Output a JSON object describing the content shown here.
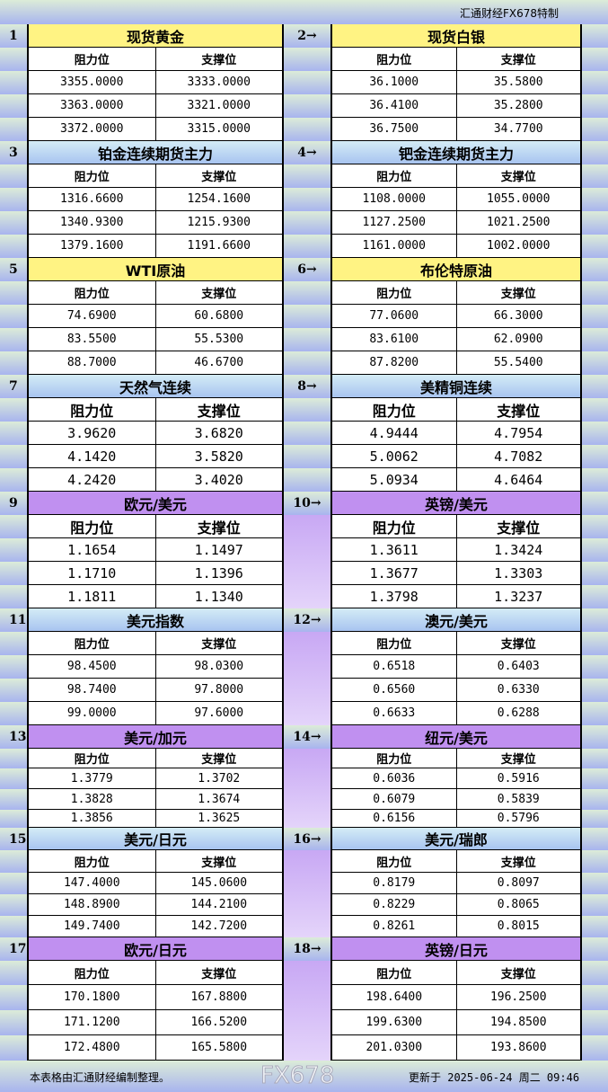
{
  "header": {
    "brand": "汇通财经FX678特制"
  },
  "columns": {
    "resistance": "阻力位",
    "support": "支撑位"
  },
  "sections": [
    {
      "no": "1",
      "name": "现货黄金",
      "color": "yellow",
      "res": [
        "3355.0000",
        "3363.0000",
        "3372.0000"
      ],
      "sup": [
        "3333.0000",
        "3321.0000",
        "3315.0000"
      ]
    },
    {
      "no": "2→",
      "name": "现货白银",
      "color": "yellow",
      "res": [
        "36.1000",
        "36.4100",
        "36.7500"
      ],
      "sup": [
        "35.5800",
        "35.2800",
        "34.7700"
      ]
    },
    {
      "no": "3",
      "name": "铂金连续期货主力",
      "color": "blue",
      "res": [
        "1316.6600",
        "1340.9300",
        "1379.1600"
      ],
      "sup": [
        "1254.1600",
        "1215.9300",
        "1191.6600"
      ]
    },
    {
      "no": "4→",
      "name": "钯金连续期货主力",
      "color": "blue",
      "res": [
        "1108.0000",
        "1127.2500",
        "1161.0000"
      ],
      "sup": [
        "1055.0000",
        "1021.2500",
        "1002.0000"
      ]
    },
    {
      "no": "5",
      "name": "WTI原油",
      "color": "yellow",
      "res": [
        "74.6900",
        "83.5500",
        "88.7000"
      ],
      "sup": [
        "60.6800",
        "55.5300",
        "46.6700"
      ]
    },
    {
      "no": "6→",
      "name": "布伦特原油",
      "color": "yellow",
      "res": [
        "77.0600",
        "83.6100",
        "87.8200"
      ],
      "sup": [
        "66.3000",
        "62.0900",
        "55.5400"
      ]
    },
    {
      "no": "7",
      "name": "天然气连续",
      "color": "blue",
      "res": [
        "3.9620",
        "4.1420",
        "4.2420"
      ],
      "sup": [
        "3.6820",
        "3.5820",
        "3.4020"
      ]
    },
    {
      "no": "8→",
      "name": "美精铜连续",
      "color": "blue",
      "res": [
        "4.9444",
        "5.0062",
        "5.0934"
      ],
      "sup": [
        "4.7954",
        "4.7082",
        "4.6464"
      ]
    },
    {
      "no": "9",
      "name": "欧元/美元",
      "color": "purple",
      "res": [
        "1.1654",
        "1.1710",
        "1.1811"
      ],
      "sup": [
        "1.1497",
        "1.1396",
        "1.1340"
      ]
    },
    {
      "no": "10→",
      "name": "英镑/美元",
      "color": "purple",
      "res": [
        "1.3611",
        "1.3677",
        "1.3798"
      ],
      "sup": [
        "1.3424",
        "1.3303",
        "1.3237"
      ]
    },
    {
      "no": "11",
      "name": "美元指数",
      "color": "blue",
      "res": [
        "98.4500",
        "98.7400",
        "99.0000"
      ],
      "sup": [
        "98.0300",
        "97.8000",
        "97.6000"
      ]
    },
    {
      "no": "12→",
      "name": "澳元/美元",
      "color": "blue",
      "res": [
        "0.6518",
        "0.6560",
        "0.6633"
      ],
      "sup": [
        "0.6403",
        "0.6330",
        "0.6288"
      ]
    },
    {
      "no": "13",
      "name": "美元/加元",
      "color": "purple",
      "res": [
        "1.3779",
        "1.3828",
        "1.3856"
      ],
      "sup": [
        "1.3702",
        "1.3674",
        "1.3625"
      ]
    },
    {
      "no": "14→",
      "name": "纽元/美元",
      "color": "purple",
      "res": [
        "0.6036",
        "0.6079",
        "0.6156"
      ],
      "sup": [
        "0.5916",
        "0.5839",
        "0.5796"
      ]
    },
    {
      "no": "15",
      "name": "美元/日元",
      "color": "blue",
      "res": [
        "147.4000",
        "148.8900",
        "149.7400"
      ],
      "sup": [
        "145.0600",
        "144.2100",
        "142.7200"
      ]
    },
    {
      "no": "16→",
      "name": "美元/瑞郎",
      "color": "blue",
      "res": [
        "0.8179",
        "0.8229",
        "0.8261"
      ],
      "sup": [
        "0.8097",
        "0.8065",
        "0.8015"
      ]
    },
    {
      "no": "17",
      "name": "欧元/日元",
      "color": "purple",
      "res": [
        "170.1800",
        "171.1200",
        "172.4800"
      ],
      "sup": [
        "167.8800",
        "166.5200",
        "165.5800"
      ]
    },
    {
      "no": "18→",
      "name": "英镑/日元",
      "color": "purple",
      "res": [
        "198.6400",
        "199.6300",
        "201.0300"
      ],
      "sup": [
        "196.2500",
        "194.8500",
        "193.8600"
      ]
    }
  ],
  "footer": {
    "note": "本表格由汇通财经编制整理。",
    "updated": "更新于 2025-06-24 周二 09:46",
    "watermark": "FX678"
  }
}
